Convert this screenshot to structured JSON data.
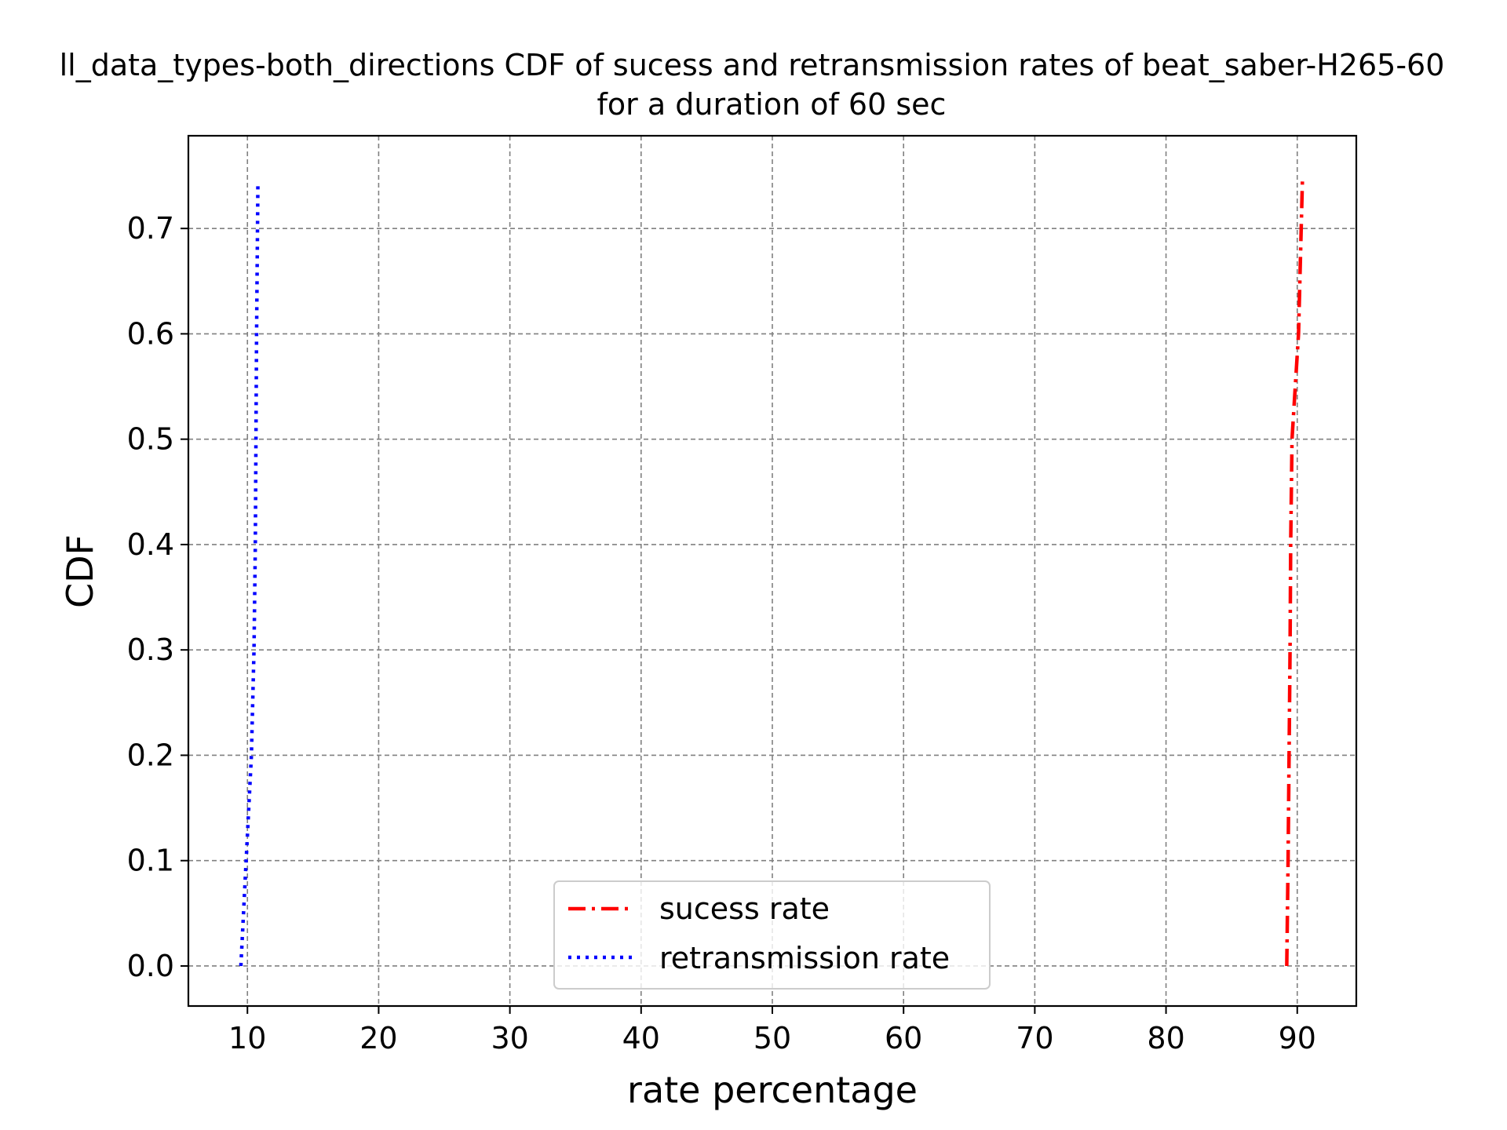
{
  "chart_data": {
    "type": "line",
    "title_line1": "ll_data_types-both_directions CDF of sucess and retransmission rates of beat_saber-H265-60",
    "title_line2": "for a duration of 60 sec",
    "xlabel": "rate percentage",
    "ylabel": "CDF",
    "xlim": [
      5.5,
      94.5
    ],
    "ylim": [
      -0.038,
      0.788
    ],
    "xticks": [
      10,
      20,
      30,
      40,
      50,
      60,
      70,
      80,
      90
    ],
    "xtick_labels": [
      "10",
      "20",
      "30",
      "40",
      "50",
      "60",
      "70",
      "80",
      "90"
    ],
    "yticks": [
      0.0,
      0.1,
      0.2,
      0.3,
      0.4,
      0.5,
      0.6,
      0.7
    ],
    "ytick_labels": [
      "0.0",
      "0.1",
      "0.2",
      "0.3",
      "0.4",
      "0.5",
      "0.6",
      "0.7"
    ],
    "grid": true,
    "legend_position": "bottom-center",
    "series": [
      {
        "name": "sucess rate",
        "color": "#ff0000",
        "style": "dashdot",
        "x": [
          89.2,
          89.3,
          89.45,
          89.5,
          89.6,
          90.1,
          90.4
        ],
        "y": [
          0.0,
          0.1,
          0.3,
          0.4,
          0.5,
          0.6,
          0.75
        ]
      },
      {
        "name": "retransmission rate",
        "color": "#0000ff",
        "style": "dotted",
        "x": [
          9.5,
          9.9,
          10.3,
          10.5,
          10.6,
          10.7,
          10.8
        ],
        "y": [
          0.0,
          0.1,
          0.2,
          0.3,
          0.4,
          0.6,
          0.745
        ]
      }
    ]
  }
}
